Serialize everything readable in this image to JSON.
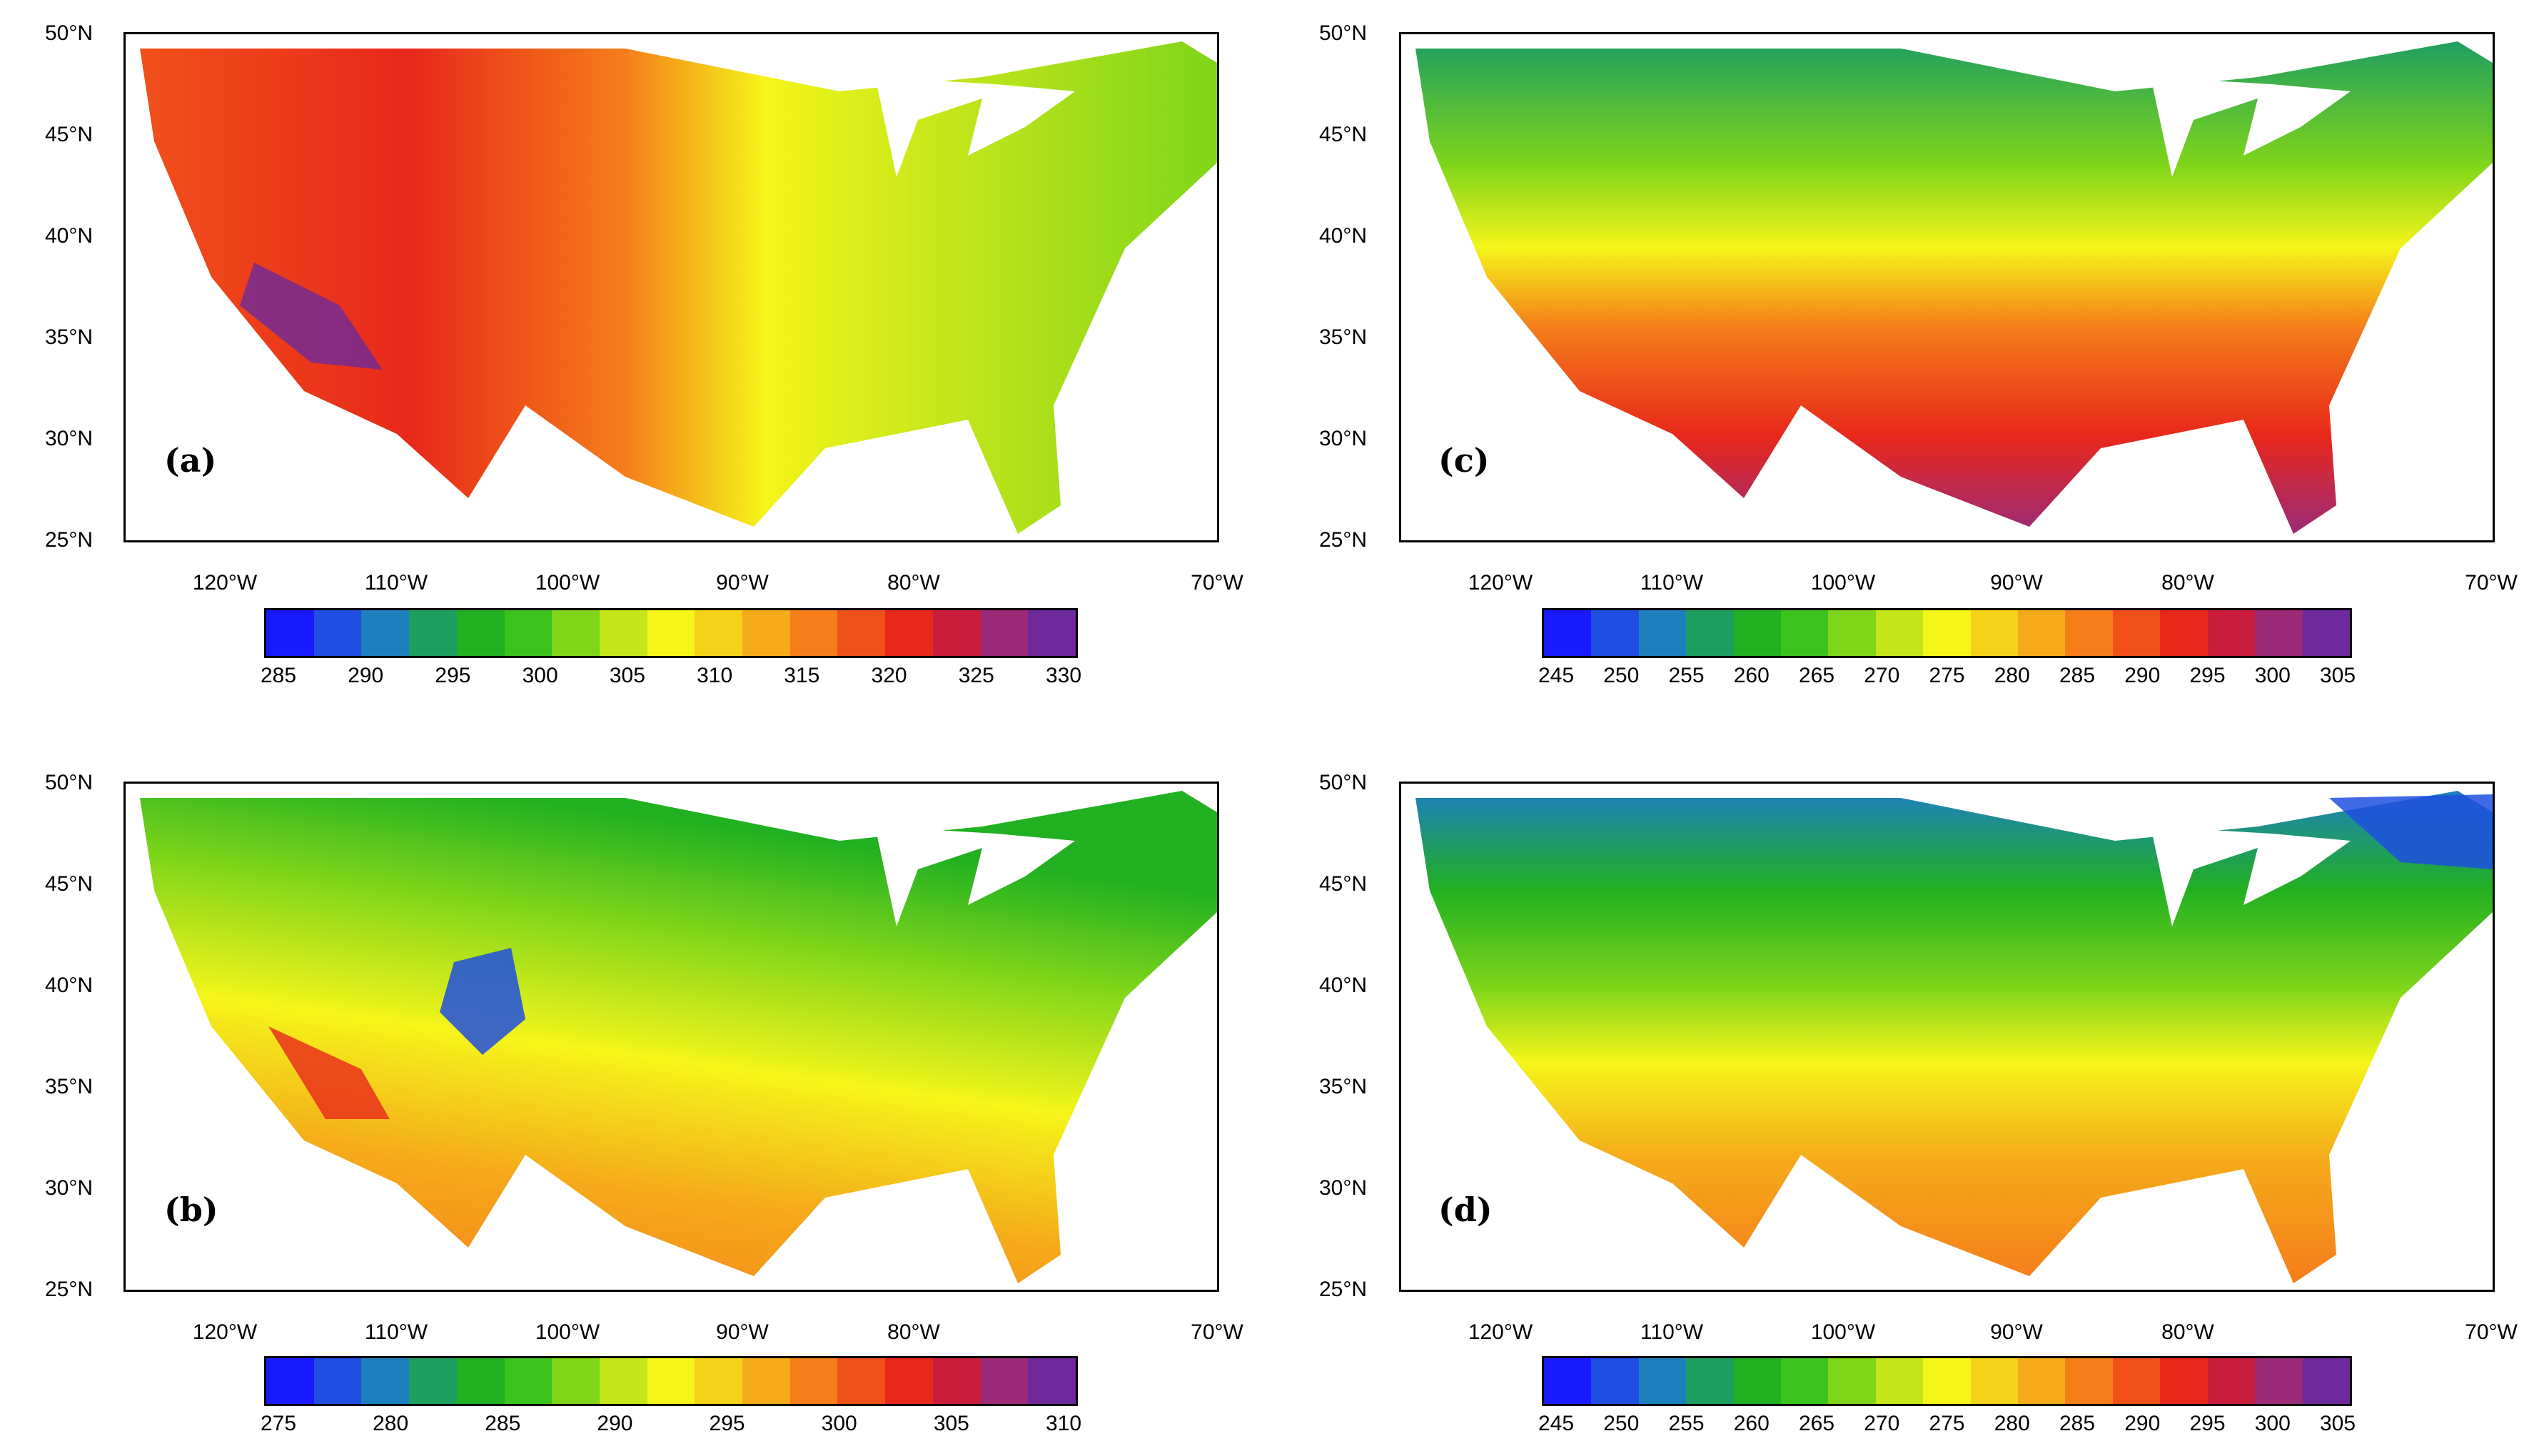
{
  "figure": {
    "lat_labels": [
      "50°N",
      "45°N",
      "40°N",
      "35°N",
      "30°N",
      "25°N"
    ],
    "lon_labels": [
      "120°W",
      "110°W",
      "100°W",
      "90°W",
      "80°W",
      "70°W"
    ]
  },
  "panels": [
    {
      "label": "(a)",
      "colorbar_ticks": [
        "285",
        "290",
        "295",
        "300",
        "305",
        "310",
        "315",
        "320",
        "325",
        "330"
      ]
    },
    {
      "label": "(c)",
      "colorbar_ticks": [
        "245",
        "250",
        "255",
        "260",
        "265",
        "270",
        "275",
        "280",
        "285",
        "290",
        "295",
        "300",
        "305"
      ]
    },
    {
      "label": "(b)",
      "colorbar_ticks": [
        "275",
        "280",
        "285",
        "290",
        "295",
        "300",
        "305",
        "310"
      ]
    },
    {
      "label": "(d)",
      "colorbar_ticks": [
        "245",
        "250",
        "255",
        "260",
        "265",
        "270",
        "275",
        "280",
        "285",
        "290",
        "295",
        "300",
        "305"
      ]
    }
  ],
  "colors": {
    "palette": [
      "#1a1aff",
      "#1f4fe0",
      "#1e7fbf",
      "#1f9f5f",
      "#21b021",
      "#3cc21c",
      "#7fd51a",
      "#c4e61a",
      "#f5f51a",
      "#f5d21a",
      "#f5aa1a",
      "#f57d1a",
      "#f0501a",
      "#e8281a",
      "#c81e3c",
      "#9b2a78",
      "#6e2a9a"
    ]
  }
}
